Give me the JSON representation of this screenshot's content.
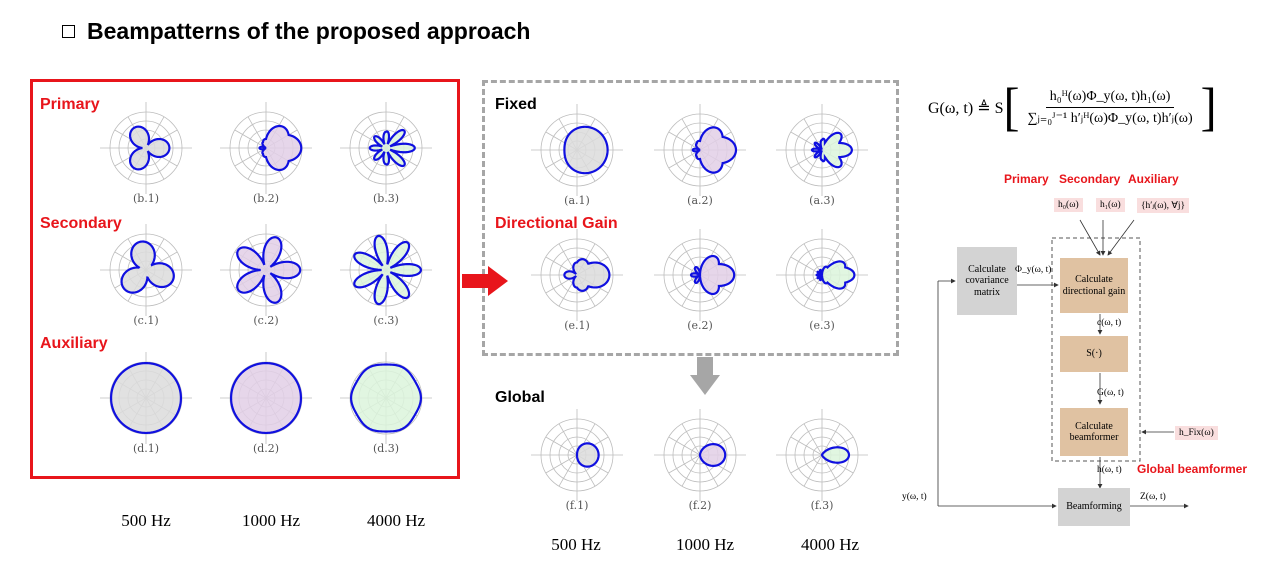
{
  "title": "Beampatterns of the proposed approach",
  "labels": {
    "primary": "Primary",
    "secondary": "Secondary",
    "auxiliary": "Auxiliary",
    "fixed": "Fixed",
    "directional_gain": "Directional Gain",
    "global": "Global"
  },
  "frequencies": [
    "500 Hz",
    "1000 Hz",
    "4000 Hz"
  ],
  "captions": {
    "b": [
      "(b.1)",
      "(b.2)",
      "(b.3)"
    ],
    "c": [
      "(c.1)",
      "(c.2)",
      "(c.3)"
    ],
    "d": [
      "(d.1)",
      "(d.2)",
      "(d.3)"
    ],
    "a": [
      "(a.1)",
      "(a.2)",
      "(a.3)"
    ],
    "e": [
      "(e.1)",
      "(e.2)",
      "(e.3)"
    ],
    "f": [
      "(f.1)",
      "(f.2)",
      "(f.3)"
    ]
  },
  "colors": {
    "pattern_stroke": "#1010e0",
    "fill_500": "#dcdcdc",
    "fill_1000": "#e2cfe6",
    "fill_4000": "#dcf5dc",
    "accent_red": "#e8151b",
    "grid": "#bdbdbd"
  },
  "equation": {
    "lhs": "G(ω, t) ≜ S",
    "numerator": "h₀ᴴ(ω)Φ_y(ω, t)h₁(ω)",
    "denominator": "∑ⱼ₌₀ᴶ⁻¹ h′ⱼᴴ(ω)Φ_y(ω, t)h′ⱼ(ω)"
  },
  "diagram": {
    "top_labels": {
      "primary": "Primary",
      "secondary": "Secondary",
      "auxiliary": "Auxiliary"
    },
    "inputs": {
      "h0": "h₀(ω)",
      "h1": "h₁(ω)",
      "hj": "{h′ⱼ(ω), ∀j}",
      "hfix": "h_Fix(ω)"
    },
    "blocks": {
      "covariance": "Calculate covariance matrix",
      "dirgain": "Calculate directional gain",
      "s": "S(·)",
      "beamformer": "Calculate beamformer",
      "beamforming": "Beamforming"
    },
    "signals": {
      "phi": "Φ_y(ω, t)",
      "c": "c(ω, t)",
      "g": "G(ω, t)",
      "h": "h(ω, t)",
      "y": "y(ω, t)",
      "z": "Z(ω, t)"
    },
    "global_label": "Global beamformer"
  }
}
